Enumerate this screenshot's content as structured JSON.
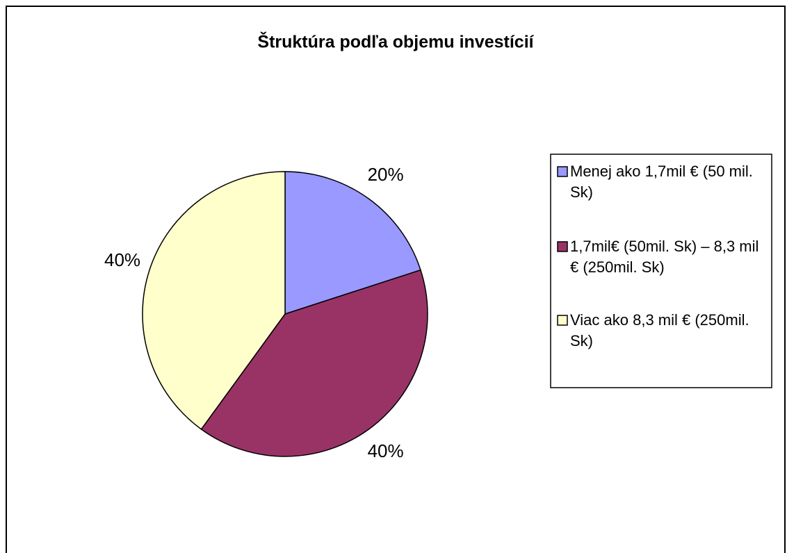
{
  "chart_data": {
    "type": "pie",
    "title": "Štruktúra podľa objemu investícií",
    "categories": [
      "Menej ako 1,7mil € (50 mil. Sk)",
      "1,7mil€ (50mil. Sk) – 8,3 mil € (250mil. Sk)",
      "Viac ako 8,3 mil € (250mil. Sk)"
    ],
    "values": [
      20,
      40,
      40
    ],
    "value_labels": [
      "20%",
      "40%",
      "40%"
    ],
    "colors": [
      "#9999ff",
      "#993366",
      "#ffffcc"
    ],
    "legend": "right"
  }
}
